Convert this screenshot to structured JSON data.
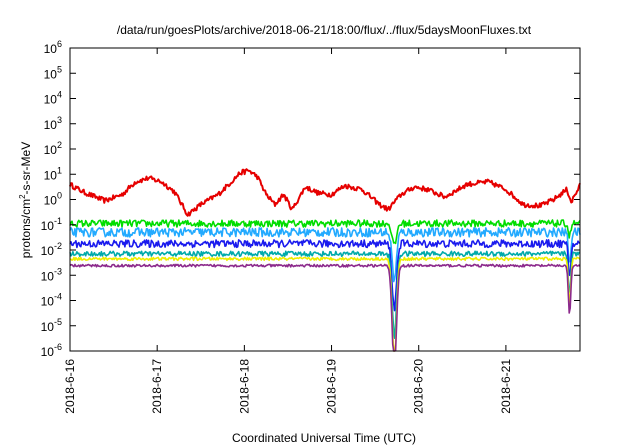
{
  "chart_data": {
    "type": "line",
    "title": "/data/run/goesPlots/archive/2018-06-21/18:00/flux/../flux/5daysMoonFluxes.txt",
    "xlabel": "Coordinated Universal Time (UTC)",
    "ylabel_parts": [
      "protons/cm",
      "2",
      "-s-sr-MeV"
    ],
    "yscale": "log",
    "ylim_exp": [
      -6,
      6
    ],
    "y_tick_base": "10",
    "y_tick_exponents": [
      "-6",
      "-5",
      "-4",
      "-3",
      "-2",
      "-1",
      "0",
      "1",
      "2",
      "3",
      "4",
      "5",
      "6"
    ],
    "x_range_days": [
      0,
      5.85
    ],
    "x_ticks": [
      "2018-6-16",
      "2018-6-17",
      "2018-6-18",
      "2018-6-19",
      "2018-6-20",
      "2018-6-21"
    ],
    "x_tick_days": [
      0,
      1,
      2,
      3,
      4,
      5
    ],
    "grid": false,
    "legend": "none",
    "dip_day": 3.72,
    "dip_day_2": 5.73,
    "series": [
      {
        "color": "#e60000",
        "base_log": 0.2,
        "noise": 0.1,
        "dip": 0.0,
        "dip2": 0.0,
        "keypoints": [
          [
            0.0,
            0.6
          ],
          [
            0.15,
            0.3
          ],
          [
            0.4,
            -0.05
          ],
          [
            0.6,
            0.2
          ],
          [
            0.75,
            0.7
          ],
          [
            0.9,
            0.85
          ],
          [
            1.05,
            0.7
          ],
          [
            1.2,
            0.3
          ],
          [
            1.35,
            -0.6
          ],
          [
            1.5,
            -0.2
          ],
          [
            1.7,
            0.2
          ],
          [
            1.85,
            0.7
          ],
          [
            1.95,
            1.05
          ],
          [
            2.05,
            1.15
          ],
          [
            2.15,
            0.9
          ],
          [
            2.25,
            0.2
          ],
          [
            2.35,
            -0.2
          ],
          [
            2.45,
            0.2
          ],
          [
            2.55,
            -0.4
          ],
          [
            2.7,
            0.5
          ],
          [
            2.85,
            0.25
          ],
          [
            3.0,
            0.2
          ],
          [
            3.15,
            0.55
          ],
          [
            3.35,
            0.4
          ],
          [
            3.55,
            -0.2
          ],
          [
            3.65,
            -0.4
          ],
          [
            3.72,
            -0.1
          ],
          [
            3.8,
            0.2
          ],
          [
            3.95,
            0.5
          ],
          [
            4.1,
            0.4
          ],
          [
            4.3,
            0.1
          ],
          [
            4.55,
            0.6
          ],
          [
            4.8,
            0.7
          ],
          [
            5.0,
            0.4
          ],
          [
            5.2,
            -0.2
          ],
          [
            5.4,
            -0.25
          ],
          [
            5.55,
            0.0
          ],
          [
            5.7,
            0.4
          ],
          [
            5.75,
            -0.1
          ],
          [
            5.85,
            0.55
          ]
        ]
      },
      {
        "color": "#00dd00",
        "base_log": -0.95,
        "noise": 0.14,
        "dip": 0.9,
        "dip2": 0.5,
        "keypoints": []
      },
      {
        "color": "#22aaff",
        "base_log": -1.3,
        "noise": 0.18,
        "dip": 1.9,
        "dip2": 1.2,
        "keypoints": []
      },
      {
        "color": "#1a1aee",
        "base_log": -1.75,
        "noise": 0.15,
        "dip": 2.6,
        "dip2": 1.4,
        "keypoints": []
      },
      {
        "color": "#00aaaa",
        "base_log": -2.15,
        "noise": 0.1,
        "dip": 3.3,
        "dip2": 1.6,
        "keypoints": []
      },
      {
        "color": "#eeee00",
        "base_log": -2.35,
        "noise": 0.06,
        "dip": 4.0,
        "dip2": 1.8,
        "keypoints": []
      },
      {
        "color": "#8c2a8c",
        "base_log": -2.62,
        "noise": 0.05,
        "dip": 4.1,
        "dip2": 1.9,
        "keypoints": []
      }
    ]
  }
}
